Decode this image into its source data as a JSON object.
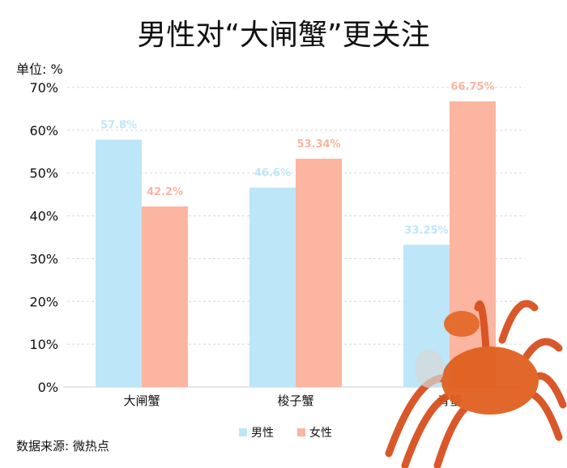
{
  "chart_data": {
    "type": "bar",
    "title": "男性对“大闸蟹”更关注",
    "ylabel": "单位: %",
    "categories": [
      "大闸蟹",
      "梭子蟹",
      "青蟹"
    ],
    "series": [
      {
        "name": "男性",
        "values": [
          57.8,
          46.6,
          33.25
        ],
        "labels": [
          "57.8%",
          "46.6%",
          "33.25%"
        ],
        "color": "#bde6f8"
      },
      {
        "name": "女性",
        "values": [
          42.2,
          53.34,
          66.75
        ],
        "labels": [
          "42.2%",
          "53.34%",
          "66.75%"
        ],
        "color": "#fbb5a0"
      }
    ],
    "ylim": [
      0,
      70
    ],
    "yticks": [
      "0%",
      "10%",
      "20%",
      "30%",
      "40%",
      "50%",
      "60%",
      "70%"
    ],
    "grid": true,
    "legend": "bottom"
  },
  "source": "数据来源: 微热点",
  "decoration": "crab-image"
}
